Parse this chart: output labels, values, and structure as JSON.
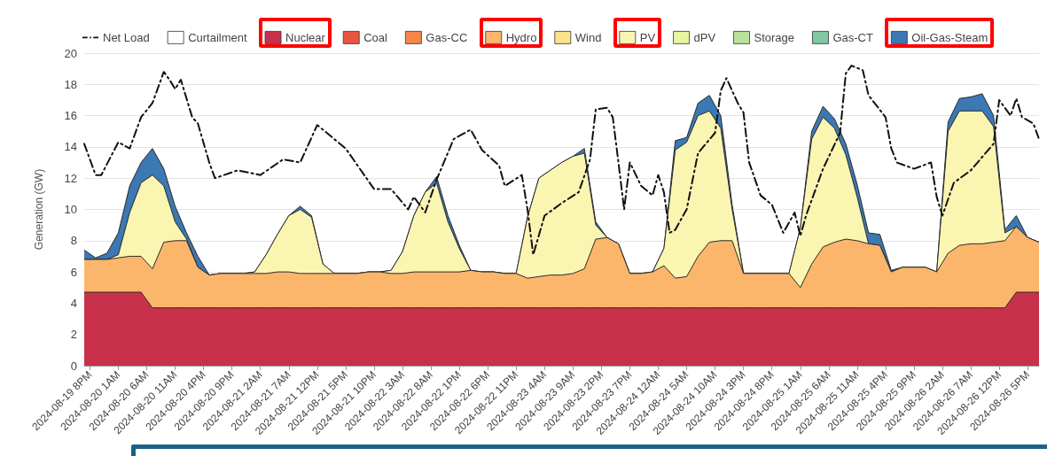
{
  "chart_data": {
    "type": "area",
    "stacked": true,
    "ylabel": "Generation (GW)",
    "ylim": [
      0,
      20
    ],
    "yticks": [
      0,
      2,
      4,
      6,
      8,
      10,
      12,
      14,
      16,
      18,
      20
    ],
    "grid": "y",
    "legend": "top",
    "xlim": [
      "2024-08-19T19:00",
      "2024-08-26T19:00"
    ],
    "xticks": [
      {
        "value": "2024-08-19T20:00",
        "label": "2024-08-19 8PM"
      },
      {
        "value": "2024-08-20T01:00",
        "label": "2024-08-20 1AM"
      },
      {
        "value": "2024-08-20T06:00",
        "label": "2024-08-20 6AM"
      },
      {
        "value": "2024-08-20T11:00",
        "label": "2024-08-20 11AM"
      },
      {
        "value": "2024-08-20T16:00",
        "label": "2024-08-20 4PM"
      },
      {
        "value": "2024-08-20T21:00",
        "label": "2024-08-20 9PM"
      },
      {
        "value": "2024-08-21T02:00",
        "label": "2024-08-21 2AM"
      },
      {
        "value": "2024-08-21T07:00",
        "label": "2024-08-21 7AM"
      },
      {
        "value": "2024-08-21T12:00",
        "label": "2024-08-21 12PM"
      },
      {
        "value": "2024-08-21T17:00",
        "label": "2024-08-21 5PM"
      },
      {
        "value": "2024-08-21T22:00",
        "label": "2024-08-21 10PM"
      },
      {
        "value": "2024-08-22T03:00",
        "label": "2024-08-22 3AM"
      },
      {
        "value": "2024-08-22T08:00",
        "label": "2024-08-22 8AM"
      },
      {
        "value": "2024-08-22T13:00",
        "label": "2024-08-22 1PM"
      },
      {
        "value": "2024-08-22T18:00",
        "label": "2024-08-22 6PM"
      },
      {
        "value": "2024-08-22T23:00",
        "label": "2024-08-22 11PM"
      },
      {
        "value": "2024-08-23T04:00",
        "label": "2024-08-23 4AM"
      },
      {
        "value": "2024-08-23T09:00",
        "label": "2024-08-23 9AM"
      },
      {
        "value": "2024-08-23T14:00",
        "label": "2024-08-23 2PM"
      },
      {
        "value": "2024-08-23T19:00",
        "label": "2024-08-23 7PM"
      },
      {
        "value": "2024-08-24T00:00",
        "label": "2024-08-24 12AM"
      },
      {
        "value": "2024-08-24T05:00",
        "label": "2024-08-24 5AM"
      },
      {
        "value": "2024-08-24T10:00",
        "label": "2024-08-24 10AM"
      },
      {
        "value": "2024-08-24T15:00",
        "label": "2024-08-24 3PM"
      },
      {
        "value": "2024-08-24T20:00",
        "label": "2024-08-24 8PM"
      },
      {
        "value": "2024-08-25T01:00",
        "label": "2024-08-25 1AM"
      },
      {
        "value": "2024-08-25T06:00",
        "label": "2024-08-25 6AM"
      },
      {
        "value": "2024-08-25T11:00",
        "label": "2024-08-25 11AM"
      },
      {
        "value": "2024-08-25T16:00",
        "label": "2024-08-25 4PM"
      },
      {
        "value": "2024-08-25T21:00",
        "label": "2024-08-25 9PM"
      },
      {
        "value": "2024-08-26T02:00",
        "label": "2024-08-26 2AM"
      },
      {
        "value": "2024-08-26T07:00",
        "label": "2024-08-26 7AM"
      },
      {
        "value": "2024-08-26T12:00",
        "label": "2024-08-26 12PM"
      },
      {
        "value": "2024-08-26T17:00",
        "label": "2024-08-26 5PM"
      }
    ],
    "x": [
      "2024-08-19T19:00",
      "2024-08-19T21:00",
      "2024-08-19T23:00",
      "2024-08-20T01:00",
      "2024-08-20T03:00",
      "2024-08-20T05:00",
      "2024-08-20T07:00",
      "2024-08-20T09:00",
      "2024-08-20T11:00",
      "2024-08-20T13:00",
      "2024-08-20T15:00",
      "2024-08-20T17:00",
      "2024-08-20T19:00",
      "2024-08-20T21:00",
      "2024-08-20T23:00",
      "2024-08-21T01:00",
      "2024-08-21T03:00",
      "2024-08-21T05:00",
      "2024-08-21T07:00",
      "2024-08-21T09:00",
      "2024-08-21T11:00",
      "2024-08-21T13:00",
      "2024-08-21T15:00",
      "2024-08-21T17:00",
      "2024-08-21T19:00",
      "2024-08-21T21:00",
      "2024-08-21T23:00",
      "2024-08-22T01:00",
      "2024-08-22T03:00",
      "2024-08-22T05:00",
      "2024-08-22T07:00",
      "2024-08-22T09:00",
      "2024-08-22T11:00",
      "2024-08-22T13:00",
      "2024-08-22T15:00",
      "2024-08-22T17:00",
      "2024-08-22T19:00",
      "2024-08-22T21:00",
      "2024-08-22T23:00",
      "2024-08-23T01:00",
      "2024-08-23T03:00",
      "2024-08-23T05:00",
      "2024-08-23T07:00",
      "2024-08-23T09:00",
      "2024-08-23T11:00",
      "2024-08-23T13:00",
      "2024-08-23T15:00",
      "2024-08-23T17:00",
      "2024-08-23T19:00",
      "2024-08-23T21:00",
      "2024-08-23T23:00",
      "2024-08-24T01:00",
      "2024-08-24T03:00",
      "2024-08-24T05:00",
      "2024-08-24T07:00",
      "2024-08-24T09:00",
      "2024-08-24T11:00",
      "2024-08-24T13:00",
      "2024-08-24T15:00",
      "2024-08-24T17:00",
      "2024-08-24T19:00",
      "2024-08-24T21:00",
      "2024-08-24T23:00",
      "2024-08-25T01:00",
      "2024-08-25T03:00",
      "2024-08-25T05:00",
      "2024-08-25T07:00",
      "2024-08-25T09:00",
      "2024-08-25T11:00",
      "2024-08-25T13:00",
      "2024-08-25T15:00",
      "2024-08-25T17:00",
      "2024-08-25T19:00",
      "2024-08-25T21:00",
      "2024-08-25T23:00",
      "2024-08-26T01:00",
      "2024-08-26T03:00",
      "2024-08-26T05:00",
      "2024-08-26T07:00",
      "2024-08-26T09:00",
      "2024-08-26T11:00",
      "2024-08-26T13:00",
      "2024-08-26T15:00",
      "2024-08-26T17:00",
      "2024-08-26T19:00"
    ],
    "series": [
      {
        "name": "Net Load",
        "type": "line",
        "color": "#111111",
        "line_style": "dashed",
        "x": [
          "2024-08-19T19:00",
          "2024-08-19T21:00",
          "2024-08-19T22:00",
          "2024-08-20T01:00",
          "2024-08-20T03:00",
          "2024-08-20T05:00",
          "2024-08-20T07:00",
          "2024-08-20T09:00",
          "2024-08-20T10:00",
          "2024-08-20T11:00",
          "2024-08-20T12:00",
          "2024-08-20T14:00",
          "2024-08-20T15:00",
          "2024-08-20T17:00",
          "2024-08-20T18:00",
          "2024-08-20T22:00",
          "2024-08-21T02:00",
          "2024-08-21T06:00",
          "2024-08-21T09:00",
          "2024-08-21T12:00",
          "2024-08-21T17:00",
          "2024-08-21T22:00",
          "2024-08-22T01:00",
          "2024-08-22T04:00",
          "2024-08-22T05:00",
          "2024-08-22T07:00",
          "2024-08-22T09:00",
          "2024-08-22T12:00",
          "2024-08-22T15:00",
          "2024-08-22T17:00",
          "2024-08-22T20:00",
          "2024-08-22T21:00",
          "2024-08-23T00:00",
          "2024-08-23T01:00",
          "2024-08-23T02:00",
          "2024-08-23T04:00",
          "2024-08-23T07:00",
          "2024-08-23T10:00",
          "2024-08-23T12:00",
          "2024-08-23T13:00",
          "2024-08-23T15:00",
          "2024-08-23T16:00",
          "2024-08-23T17:00",
          "2024-08-23T18:00",
          "2024-08-23T19:00",
          "2024-08-23T21:00",
          "2024-08-23T23:00",
          "2024-08-24T00:00",
          "2024-08-24T01:00",
          "2024-08-24T02:00",
          "2024-08-24T03:00",
          "2024-08-24T05:00",
          "2024-08-24T07:00",
          "2024-08-24T10:00",
          "2024-08-24T11:00",
          "2024-08-24T12:00",
          "2024-08-24T14:00",
          "2024-08-24T15:00",
          "2024-08-24T16:00",
          "2024-08-24T18:00",
          "2024-08-24T20:00",
          "2024-08-24T22:00",
          "2024-08-25T00:00",
          "2024-08-25T01:00",
          "2024-08-25T02:00",
          "2024-08-25T05:00",
          "2024-08-25T08:00",
          "2024-08-25T09:00",
          "2024-08-25T10:00",
          "2024-08-25T12:00",
          "2024-08-25T13:00",
          "2024-08-25T16:00",
          "2024-08-25T17:00",
          "2024-08-25T18:00",
          "2024-08-25T21:00",
          "2024-08-26T00:00",
          "2024-08-26T01:00",
          "2024-08-26T02:00",
          "2024-08-26T04:00",
          "2024-08-26T07:00",
          "2024-08-26T11:00",
          "2024-08-26T12:00",
          "2024-08-26T14:00",
          "2024-08-26T15:00",
          "2024-08-26T16:00",
          "2024-08-26T18:00",
          "2024-08-26T19:00"
        ],
        "values": [
          14.2,
          12.2,
          12.2,
          14.3,
          13.9,
          15.9,
          16.8,
          18.8,
          18.3,
          17.7,
          18.3,
          15.9,
          15.5,
          13.0,
          12.0,
          12.5,
          12.2,
          13.2,
          13.0,
          15.4,
          13.9,
          11.3,
          11.3,
          10.0,
          10.8,
          9.8,
          11.9,
          14.5,
          15.1,
          13.8,
          12.8,
          11.5,
          12.2,
          10.0,
          7.1,
          9.6,
          10.4,
          11.1,
          13.2,
          16.4,
          16.5,
          15.9,
          13.0,
          10.0,
          13.0,
          11.5,
          10.9,
          12.2,
          11.1,
          8.5,
          8.7,
          10.0,
          13.6,
          14.9,
          17.6,
          18.4,
          16.8,
          16.2,
          13.0,
          10.9,
          10.3,
          8.5,
          9.8,
          8.3,
          9.6,
          12.6,
          14.9,
          18.7,
          19.2,
          18.9,
          17.3,
          15.9,
          13.9,
          13.0,
          12.6,
          13.0,
          10.8,
          9.6,
          11.7,
          12.5,
          14.2,
          17.0,
          16.0,
          17.1,
          15.9,
          15.5,
          14.5
        ]
      },
      {
        "name": "Curtailment",
        "color": "#ffffff",
        "values": [
          null,
          null,
          null,
          null,
          null,
          null,
          null,
          null,
          null,
          null,
          null,
          null,
          null,
          null,
          null,
          null,
          null,
          null,
          null,
          null,
          null,
          null,
          null,
          null,
          null,
          null,
          null,
          null,
          null,
          null,
          null,
          null,
          null,
          null,
          null,
          null,
          null,
          null,
          null,
          null,
          null,
          null,
          null,
          null,
          null,
          null,
          null,
          null,
          null,
          null,
          null,
          null,
          null,
          null,
          null,
          null,
          null,
          null,
          null,
          null,
          null,
          null,
          null,
          null,
          null,
          null,
          null,
          null,
          null,
          null,
          null,
          null,
          null,
          null,
          null,
          null,
          null,
          null,
          null,
          null,
          null,
          null,
          null,
          null,
          null
        ]
      },
      {
        "name": "Nuclear",
        "color": "#c9314a",
        "values": [
          4.7,
          4.7,
          4.7,
          4.7,
          4.7,
          4.7,
          3.7,
          3.7,
          3.7,
          3.7,
          3.7,
          3.7,
          3.7,
          3.7,
          3.7,
          3.7,
          3.7,
          3.7,
          3.7,
          3.7,
          3.7,
          3.7,
          3.7,
          3.7,
          3.7,
          3.7,
          3.7,
          3.7,
          3.7,
          3.7,
          3.7,
          3.7,
          3.7,
          3.7,
          3.7,
          3.7,
          3.7,
          3.7,
          3.7,
          3.7,
          3.7,
          3.7,
          3.7,
          3.7,
          3.7,
          3.7,
          3.7,
          3.7,
          3.7,
          3.7,
          3.7,
          3.7,
          3.7,
          3.7,
          3.7,
          3.7,
          3.7,
          3.7,
          3.7,
          3.7,
          3.7,
          3.7,
          3.7,
          3.7,
          3.7,
          3.7,
          3.7,
          3.7,
          3.7,
          3.7,
          3.7,
          3.7,
          3.7,
          3.7,
          3.7,
          3.7,
          3.7,
          3.7,
          3.7,
          3.7,
          3.7,
          3.7,
          4.7,
          4.7,
          4.7
        ]
      },
      {
        "name": "Coal",
        "color": "#e8563f",
        "values": [
          null,
          null,
          null,
          null,
          null,
          null,
          null,
          null,
          null,
          null,
          null,
          null,
          null,
          null,
          null,
          null,
          null,
          null,
          null,
          null,
          null,
          null,
          null,
          null,
          null,
          null,
          null,
          null,
          null,
          null,
          null,
          null,
          null,
          null,
          null,
          null,
          null,
          null,
          null,
          null,
          null,
          null,
          null,
          null,
          null,
          null,
          null,
          null,
          null,
          null,
          null,
          null,
          null,
          null,
          null,
          null,
          null,
          null,
          null,
          null,
          null,
          null,
          null,
          null,
          null,
          null,
          null,
          null,
          null,
          null,
          null,
          null,
          null,
          null,
          null,
          null,
          null,
          null,
          null,
          null,
          null,
          null,
          null,
          null,
          null
        ]
      },
      {
        "name": "Gas-CC",
        "color": "#f5874a",
        "values": [
          null,
          null,
          null,
          null,
          null,
          null,
          null,
          null,
          null,
          null,
          null,
          null,
          null,
          null,
          null,
          null,
          null,
          null,
          null,
          null,
          null,
          null,
          null,
          null,
          null,
          null,
          null,
          null,
          null,
          null,
          null,
          null,
          null,
          null,
          null,
          null,
          null,
          null,
          null,
          null,
          null,
          null,
          null,
          null,
          null,
          null,
          null,
          null,
          null,
          null,
          null,
          null,
          null,
          null,
          null,
          null,
          null,
          null,
          null,
          null,
          null,
          null,
          null,
          null,
          null,
          null,
          null,
          null,
          null,
          null,
          null,
          null,
          null,
          null,
          null,
          null,
          null,
          null,
          null,
          null,
          null,
          null,
          null,
          null,
          null
        ]
      },
      {
        "name": "Hydro",
        "color": "#fbb66c",
        "values": [
          2.1,
          2.1,
          2.1,
          2.2,
          2.3,
          2.3,
          2.5,
          4.2,
          4.3,
          4.3,
          2.6,
          2.1,
          2.2,
          2.2,
          2.2,
          2.2,
          2.2,
          2.3,
          2.3,
          2.2,
          2.2,
          2.2,
          2.2,
          2.2,
          2.2,
          2.3,
          2.3,
          2.2,
          2.2,
          2.3,
          2.3,
          2.3,
          2.3,
          2.3,
          2.4,
          2.3,
          2.3,
          2.2,
          2.2,
          1.9,
          2.0,
          2.1,
          2.1,
          2.2,
          2.5,
          4.4,
          4.5,
          4.1,
          2.2,
          2.2,
          2.3,
          2.7,
          1.9,
          2.0,
          3.3,
          4.2,
          4.3,
          4.3,
          2.2,
          2.2,
          2.2,
          2.2,
          2.2,
          1.3,
          2.8,
          3.9,
          4.2,
          4.4,
          4.3,
          4.1,
          4.0,
          2.3,
          2.6,
          2.6,
          2.6,
          2.3,
          3.5,
          4.0,
          4.1,
          4.1,
          4.2,
          4.3,
          4.2,
          3.5,
          3.2
        ]
      },
      {
        "name": "Wind",
        "color": "#fde28c",
        "values": [
          null,
          null,
          null,
          null,
          null,
          null,
          null,
          null,
          null,
          null,
          null,
          null,
          null,
          null,
          null,
          null,
          null,
          null,
          null,
          null,
          null,
          null,
          null,
          null,
          null,
          null,
          null,
          null,
          null,
          null,
          null,
          null,
          null,
          null,
          null,
          null,
          null,
          null,
          null,
          null,
          null,
          null,
          null,
          null,
          null,
          null,
          null,
          null,
          null,
          null,
          null,
          null,
          null,
          null,
          null,
          null,
          null,
          null,
          null,
          null,
          null,
          null,
          null,
          null,
          null,
          null,
          null,
          null,
          null,
          null,
          null,
          null,
          null,
          null,
          null,
          null,
          null,
          null,
          null,
          null,
          null,
          null,
          null,
          null,
          null
        ]
      },
      {
        "name": "PV",
        "color": "#fbf5b2",
        "values": [
          0,
          0,
          0,
          0.2,
          2.8,
          4.7,
          6.0,
          3.6,
          1.2,
          0.1,
          0,
          0,
          0,
          0,
          0,
          0.1,
          1.2,
          2.4,
          3.6,
          4.1,
          3.6,
          0.6,
          0,
          0,
          0,
          0,
          0,
          0.2,
          1.4,
          3.6,
          5.1,
          5.7,
          3.2,
          1.5,
          0,
          0,
          0,
          0,
          0,
          3.9,
          6.3,
          6.7,
          7.2,
          7.5,
          7.4,
          0.9,
          0,
          0,
          0,
          0,
          0,
          1.1,
          8.2,
          8.6,
          9.0,
          8.4,
          7.2,
          2.0,
          0,
          0,
          0,
          0,
          0,
          3.8,
          8.0,
          8.3,
          7.3,
          5.4,
          2.8,
          0,
          0,
          0,
          0,
          0,
          0,
          0,
          7.8,
          8.6,
          8.5,
          8.5,
          7.4,
          0.5,
          0,
          0,
          0
        ]
      },
      {
        "name": "dPV",
        "color": "#e9f4a2",
        "values": [
          null,
          null,
          null,
          null,
          null,
          null,
          null,
          null,
          null,
          null,
          null,
          null,
          null,
          null,
          null,
          null,
          null,
          null,
          null,
          null,
          null,
          null,
          null,
          null,
          null,
          null,
          null,
          null,
          null,
          null,
          null,
          null,
          null,
          null,
          null,
          null,
          null,
          null,
          null,
          null,
          null,
          null,
          null,
          null,
          null,
          null,
          null,
          null,
          null,
          null,
          null,
          null,
          null,
          null,
          null,
          null,
          null,
          null,
          null,
          null,
          null,
          null,
          null,
          null,
          null,
          null,
          null,
          null,
          null,
          null,
          null,
          null,
          null,
          null,
          null,
          null,
          null,
          null,
          null,
          null,
          null,
          null,
          null,
          null,
          null
        ]
      },
      {
        "name": "Storage",
        "color": "#b8e29c",
        "values": [
          null,
          null,
          null,
          null,
          null,
          null,
          null,
          null,
          null,
          null,
          null,
          null,
          null,
          null,
          null,
          null,
          null,
          null,
          null,
          null,
          null,
          null,
          null,
          null,
          null,
          null,
          null,
          null,
          null,
          null,
          null,
          null,
          null,
          null,
          null,
          null,
          null,
          null,
          null,
          null,
          null,
          null,
          null,
          null,
          null,
          null,
          null,
          null,
          null,
          null,
          null,
          null,
          null,
          null,
          null,
          null,
          null,
          null,
          null,
          null,
          null,
          null,
          null,
          null,
          null,
          null,
          null,
          null,
          null,
          null,
          null,
          null,
          null,
          null,
          null,
          null,
          null,
          null,
          null,
          null,
          null,
          null,
          null,
          null,
          null
        ]
      },
      {
        "name": "Gas-CT",
        "color": "#80c9a2",
        "values": [
          null,
          null,
          null,
          null,
          null,
          null,
          null,
          null,
          null,
          null,
          null,
          null,
          null,
          null,
          null,
          null,
          null,
          null,
          null,
          null,
          null,
          null,
          null,
          null,
          null,
          null,
          null,
          null,
          null,
          null,
          null,
          null,
          null,
          null,
          null,
          null,
          null,
          null,
          null,
          null,
          null,
          null,
          null,
          null,
          null,
          null,
          null,
          null,
          null,
          null,
          null,
          null,
          null,
          null,
          null,
          null,
          null,
          null,
          null,
          null,
          null,
          null,
          null,
          null,
          null,
          null,
          null,
          null,
          null,
          null,
          null,
          null,
          null,
          null,
          null,
          null,
          null,
          null,
          null,
          null,
          null,
          null,
          null,
          null,
          null
        ]
      },
      {
        "name": "Oil-Gas-Steam",
        "color": "#3b78b4",
        "values": [
          0.6,
          0.1,
          0.4,
          1.4,
          1.7,
          1.3,
          1.7,
          1.1,
          1.0,
          0.4,
          0.7,
          0,
          0,
          0,
          0,
          0,
          0,
          0,
          0,
          0.2,
          0.1,
          0,
          0,
          0,
          0,
          0,
          0,
          0,
          0,
          0,
          0,
          0.4,
          0.4,
          0.2,
          0,
          0,
          0,
          0,
          0,
          0,
          0,
          0,
          0,
          0,
          0.3,
          0.2,
          0,
          0,
          0,
          0,
          0,
          0,
          0.6,
          0.3,
          0.8,
          1.0,
          0.8,
          0.3,
          0,
          0,
          0,
          0,
          0,
          0,
          0.5,
          0.7,
          0.6,
          0.7,
          0.8,
          0.7,
          0.7,
          0.1,
          0,
          0,
          0,
          0,
          0.6,
          0.8,
          0.9,
          1.1,
          0.7,
          0.2,
          0.7,
          0,
          0
        ]
      }
    ]
  }
}
